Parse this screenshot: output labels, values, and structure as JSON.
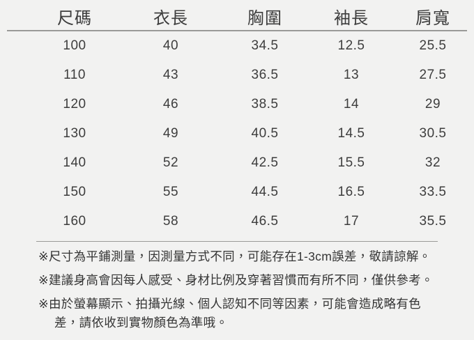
{
  "colors": {
    "background": "#f2f2f1",
    "text": "#3d3d3d",
    "divider": "#9a9a98"
  },
  "chart_data": {
    "type": "table",
    "title": "",
    "columns": [
      "尺碼",
      "衣長",
      "胸圍",
      "袖長",
      "肩寬"
    ],
    "rows": [
      [
        "100",
        "40",
        "34.5",
        "12.5",
        "25.5"
      ],
      [
        "110",
        "43",
        "36.5",
        "13",
        "27.5"
      ],
      [
        "120",
        "46",
        "38.5",
        "14",
        "29"
      ],
      [
        "130",
        "49",
        "40.5",
        "14.5",
        "30.5"
      ],
      [
        "140",
        "52",
        "42.5",
        "15.5",
        "32"
      ],
      [
        "150",
        "55",
        "44.5",
        "16.5",
        "33.5"
      ],
      [
        "160",
        "58",
        "46.5",
        "17",
        "35.5"
      ]
    ],
    "annotations": [
      "※尺寸為平鋪測量，因測量方式不同，可能存在1-3cm誤差，敬請諒解。",
      "※建議身高會因每人感受、身材比例及穿著習慣而有所不同，僅供參考。",
      "※由於螢幕顯示、拍攝光線、個人認知不同等因素，可能會造成略有色\n差，請依收到實物顏色為準哦。"
    ]
  }
}
